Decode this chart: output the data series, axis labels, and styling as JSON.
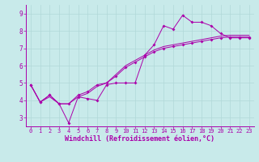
{
  "xlabel": "Windchill (Refroidissement éolien,°C)",
  "bg_color": "#c8eaea",
  "line_color": "#aa00aa",
  "grid_color": "#b0d8d8",
  "xlim": [
    -0.5,
    23.5
  ],
  "ylim": [
    2.5,
    9.5
  ],
  "yticks": [
    3,
    4,
    5,
    6,
    7,
    8,
    9
  ],
  "xticks": [
    0,
    1,
    2,
    3,
    4,
    5,
    6,
    7,
    8,
    9,
    10,
    11,
    12,
    13,
    14,
    15,
    16,
    17,
    18,
    19,
    20,
    21,
    22,
    23
  ],
  "line1_x": [
    0,
    1,
    2,
    3,
    4,
    5,
    6,
    7,
    8,
    9,
    10,
    11,
    12,
    13,
    14,
    15,
    16,
    17,
    18,
    19,
    20,
    21,
    22,
    23
  ],
  "line1_y": [
    4.9,
    3.9,
    4.3,
    3.8,
    2.7,
    4.2,
    4.1,
    4.0,
    4.9,
    5.0,
    5.0,
    5.0,
    6.6,
    7.2,
    8.3,
    8.1,
    8.9,
    8.5,
    8.5,
    8.3,
    7.85,
    7.6,
    7.6,
    7.6
  ],
  "line2_x": [
    0,
    1,
    2,
    3,
    4,
    5,
    6,
    7,
    8,
    9,
    10,
    11,
    12,
    13,
    14,
    15,
    16,
    17,
    18,
    19,
    20,
    21,
    22,
    23
  ],
  "line2_y": [
    4.9,
    3.9,
    4.3,
    3.8,
    3.8,
    4.3,
    4.5,
    4.9,
    5.0,
    5.4,
    5.9,
    6.2,
    6.5,
    6.8,
    7.0,
    7.1,
    7.2,
    7.3,
    7.4,
    7.5,
    7.6,
    7.65,
    7.65,
    7.65
  ],
  "line3_x": [
    0,
    1,
    2,
    3,
    4,
    5,
    6,
    7,
    8,
    9,
    10,
    11,
    12,
    13,
    14,
    15,
    16,
    17,
    18,
    19,
    20,
    21,
    22,
    23
  ],
  "line3_y": [
    4.9,
    3.9,
    4.2,
    3.8,
    3.8,
    4.2,
    4.4,
    4.8,
    5.0,
    5.5,
    6.0,
    6.3,
    6.6,
    6.9,
    7.1,
    7.2,
    7.3,
    7.4,
    7.5,
    7.6,
    7.7,
    7.75,
    7.75,
    7.75
  ],
  "tick_fontsize": 5.0,
  "xlabel_fontsize": 6.0,
  "lw": 0.7,
  "ms": 2.0
}
